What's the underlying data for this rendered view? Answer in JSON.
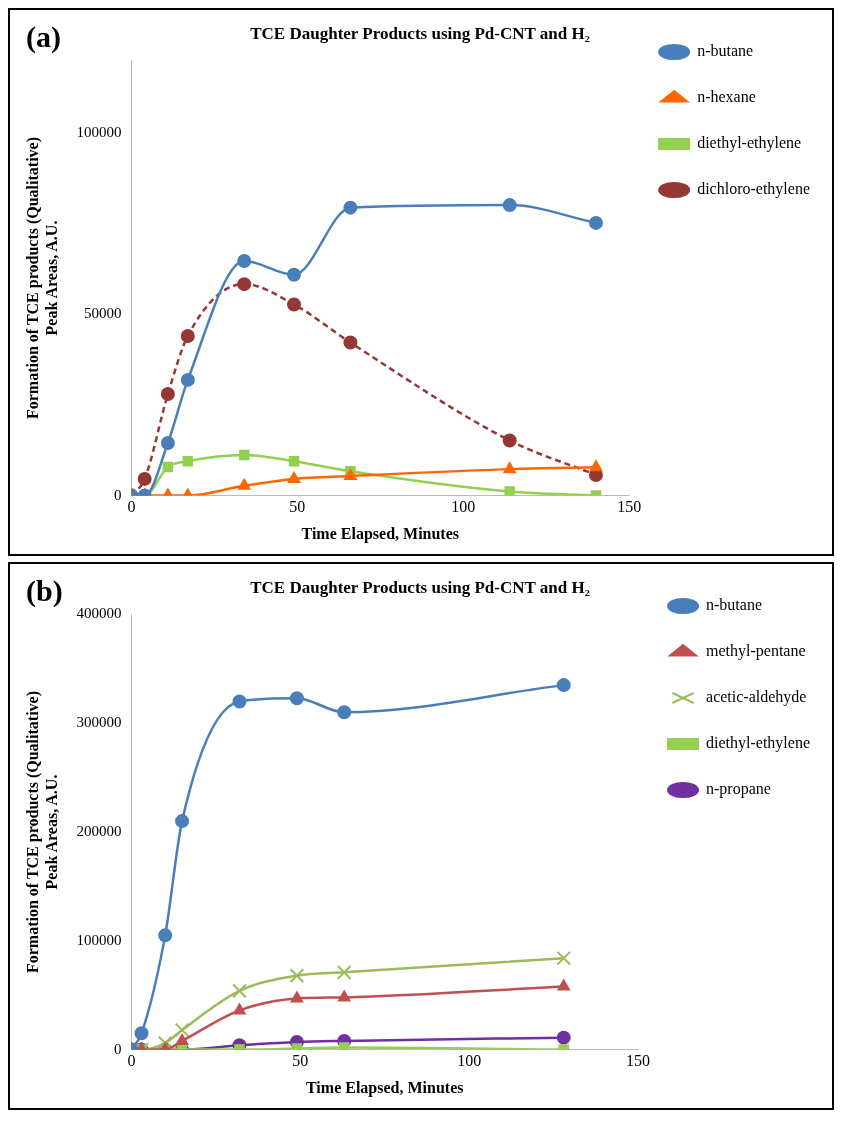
{
  "chart_data": [
    {
      "type": "line",
      "title": "TCE Daughter Products using Pd-CNT and H₂",
      "xlabel": "Time Elapsed, Minutes",
      "ylabel": "Formation of TCE products (Qualitative)\nPeak Areas, A.U.",
      "annotations": [
        "(a)"
      ],
      "x": [
        0,
        4,
        11,
        17,
        34,
        49,
        66,
        114,
        140
      ],
      "xlim": [
        0,
        150
      ],
      "xticks": [
        0,
        50,
        100,
        150
      ],
      "ylim": [
        0,
        120000
      ],
      "yticks": [
        0,
        50000,
        100000
      ],
      "grid": false,
      "legend": "right",
      "series": [
        {
          "name": "n-butane",
          "color": "#4a7ebb",
          "marker": "circle",
          "values": [
            0,
            0,
            14500,
            31900,
            64700,
            60900,
            79400,
            80100,
            75200
          ]
        },
        {
          "name": "n-hexane",
          "color": "#ff6600",
          "marker": "triangle",
          "values": [
            0,
            0,
            0,
            0,
            2700,
            4600,
            5400,
            7300,
            7800
          ]
        },
        {
          "name": "diethyl-ethylene",
          "color": "#92d050",
          "marker": "square",
          "values": [
            0,
            0,
            7900,
            9500,
            11200,
            9500,
            6700,
            1100,
            0
          ]
        },
        {
          "name": "dichloro-ethylene",
          "color": "#953735",
          "marker": "circle",
          "line_style": "dashed",
          "values": [
            0,
            4600,
            28000,
            44000,
            58300,
            52700,
            42200,
            15200,
            5700
          ]
        }
      ]
    },
    {
      "type": "line",
      "title": "TCE Daughter Products using Pd-CNT and H₂",
      "xlabel": "Time Elapsed, Minutes",
      "ylabel": "Formation of TCE products (Qualitative)\nPeak Areas, A.U.",
      "annotations": [
        "(b)"
      ],
      "x": [
        0,
        3,
        10,
        15,
        32,
        49,
        63,
        128
      ],
      "xlim": [
        0,
        150
      ],
      "xticks": [
        0,
        50,
        100,
        150
      ],
      "ylim": [
        0,
        400000
      ],
      "yticks": [
        0,
        100000,
        200000,
        300000,
        400000
      ],
      "grid": false,
      "legend": "right",
      "series": [
        {
          "name": "n-butane",
          "color": "#4a7ebb",
          "marker": "circle",
          "values": [
            0,
            15000,
            105000,
            210000,
            320000,
            323000,
            310000,
            335000
          ]
        },
        {
          "name": "methyl-pentane",
          "color": "#c0504d",
          "marker": "triangle",
          "values": [
            0,
            0,
            0,
            8000,
            36000,
            47000,
            48000,
            58000
          ]
        },
        {
          "name": "acetic-aldehyde",
          "color": "#9bbb59",
          "marker": "cross",
          "values": [
            0,
            0,
            6000,
            18000,
            54000,
            68000,
            71000,
            84000
          ]
        },
        {
          "name": "diethyl-ethylene",
          "color": "#92d050",
          "marker": "square",
          "values": [
            0,
            0,
            0,
            0,
            0,
            1000,
            2000,
            0
          ]
        },
        {
          "name": "n-propane",
          "color": "#7030a0",
          "marker": "circle",
          "values": [
            0,
            0,
            0,
            0,
            4000,
            7000,
            8000,
            11000
          ]
        }
      ]
    }
  ]
}
